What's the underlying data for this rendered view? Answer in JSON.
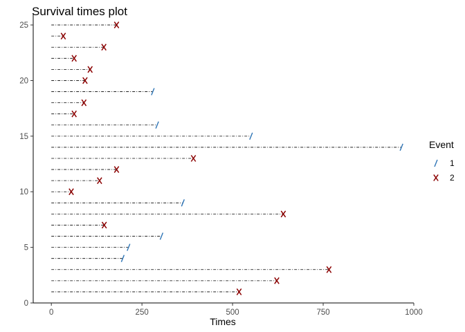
{
  "chart_data": {
    "type": "survival-times",
    "title": "Survival times plot",
    "xlabel": "Times",
    "ylabel": "",
    "xlim": [
      -50,
      1000
    ],
    "ylim": [
      0,
      26
    ],
    "x_ticks": [
      0,
      250,
      500,
      750,
      1000
    ],
    "y_ticks": [
      0,
      5,
      10,
      15,
      20,
      25
    ],
    "grid": false,
    "legend": {
      "title": "Event",
      "placement": "right",
      "entries": [
        {
          "label": "1",
          "marker": "/",
          "color": "#2e75b6"
        },
        {
          "label": "2",
          "marker": "X",
          "color": "#8b0000"
        }
      ]
    },
    "subjects": [
      {
        "id": 1,
        "time": 518,
        "event": "2"
      },
      {
        "id": 2,
        "time": 622,
        "event": "2"
      },
      {
        "id": 3,
        "time": 766,
        "event": "2"
      },
      {
        "id": 4,
        "time": 197,
        "event": "1"
      },
      {
        "id": 5,
        "time": 213,
        "event": "1"
      },
      {
        "id": 6,
        "time": 304,
        "event": "1"
      },
      {
        "id": 7,
        "time": 146,
        "event": "2"
      },
      {
        "id": 8,
        "time": 640,
        "event": "2"
      },
      {
        "id": 9,
        "time": 363,
        "event": "1"
      },
      {
        "id": 10,
        "time": 55,
        "event": "2"
      },
      {
        "id": 11,
        "time": 133,
        "event": "2"
      },
      {
        "id": 12,
        "time": 180,
        "event": "2"
      },
      {
        "id": 13,
        "time": 392,
        "event": "2"
      },
      {
        "id": 14,
        "time": 966,
        "event": "1"
      },
      {
        "id": 15,
        "time": 551,
        "event": "1"
      },
      {
        "id": 16,
        "time": 292,
        "event": "1"
      },
      {
        "id": 17,
        "time": 63,
        "event": "2"
      },
      {
        "id": 18,
        "time": 90,
        "event": "2"
      },
      {
        "id": 19,
        "time": 280,
        "event": "1"
      },
      {
        "id": 20,
        "time": 93,
        "event": "2"
      },
      {
        "id": 21,
        "time": 107,
        "event": "2"
      },
      {
        "id": 22,
        "time": 63,
        "event": "2"
      },
      {
        "id": 23,
        "time": 145,
        "event": "2"
      },
      {
        "id": 24,
        "time": 33,
        "event": "2"
      },
      {
        "id": 25,
        "time": 180,
        "event": "2"
      }
    ]
  }
}
